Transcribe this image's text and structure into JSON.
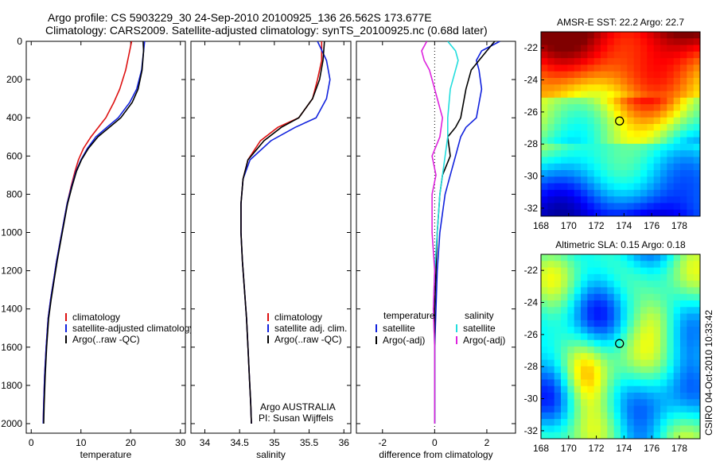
{
  "header": {
    "line1": "Argo profile: CS 5903229_30 24-Sep-2010 20100925_136 26.562S 173.677E",
    "line2": "Climatology: CARS2009. Satellite-adjusted climatology: synTS_20100925.nc (0.68d later)"
  },
  "side_text": "CSIRO 04-Oct-2010 10:33:42",
  "colors": {
    "clim": "#dd1111",
    "sat": "#1122dd",
    "argo": "#000000",
    "sal_sat": "#22dddd",
    "sal_argo": "#dd22dd"
  },
  "chart_data": [
    {
      "type": "line",
      "panel": "temperature",
      "xlabel": "temperature",
      "xlim": [
        -1,
        31
      ],
      "ylim": [
        2050,
        0
      ],
      "xticks": [
        "0",
        "10",
        "20",
        "30"
      ],
      "yticks": [
        "0",
        "200",
        "400",
        "600",
        "800",
        "1000",
        "1200",
        "1400",
        "1600",
        "1800",
        "2000"
      ],
      "legend": [
        "climatology",
        "satellite-adjusted climatology",
        "Argo(..raw -QC)"
      ],
      "series": [
        {
          "name": "climatology",
          "color": "#dd1111",
          "x": [
            20.2,
            19.8,
            19.0,
            17.8,
            16.6,
            15.0,
            13.5,
            12.0,
            10.5,
            9.5,
            8.8,
            8.0,
            7.2,
            6.5,
            5.8,
            5.1,
            4.5,
            3.9,
            3.4,
            3.0,
            2.7,
            2.5,
            2.4
          ],
          "y": [
            0,
            50,
            150,
            250,
            320,
            400,
            450,
            500,
            560,
            620,
            680,
            760,
            850,
            950,
            1050,
            1150,
            1250,
            1350,
            1450,
            1600,
            1750,
            1900,
            2000
          ]
        },
        {
          "name": "satellite-adjusted climatology",
          "color": "#1122dd",
          "x": [
            22.8,
            22.6,
            22.2,
            21.2,
            19.8,
            17.5,
            15.2,
            13.0,
            11.3,
            10.0,
            9.0,
            8.1,
            7.2,
            6.5,
            5.8,
            5.1,
            4.5,
            3.9,
            3.4,
            3.0,
            2.7,
            2.5,
            2.4
          ],
          "y": [
            0,
            50,
            150,
            250,
            320,
            400,
            450,
            500,
            560,
            620,
            680,
            760,
            850,
            950,
            1050,
            1150,
            1250,
            1350,
            1450,
            1600,
            1750,
            1900,
            2000
          ]
        },
        {
          "name": "Argo(..raw -QC)",
          "color": "#000000",
          "x": [
            22.5,
            22.6,
            22.3,
            21.5,
            20.3,
            18.0,
            15.7,
            13.4,
            11.5,
            10.1,
            9.1,
            8.2,
            7.3,
            6.6,
            5.9,
            5.2,
            4.6,
            4.0,
            3.5,
            3.1,
            2.8,
            2.6,
            2.5
          ],
          "y": [
            0,
            50,
            150,
            250,
            320,
            400,
            450,
            500,
            560,
            620,
            680,
            760,
            850,
            950,
            1050,
            1150,
            1250,
            1350,
            1450,
            1600,
            1750,
            1900,
            2000
          ]
        }
      ]
    },
    {
      "type": "line",
      "panel": "salinity",
      "xlabel": "salinity",
      "xlim": [
        33.8,
        36.1
      ],
      "ylim": [
        2050,
        0
      ],
      "xticks": [
        "34",
        "34.5",
        "35",
        "35.5",
        "36"
      ],
      "legend": [
        "climatology",
        "satellite adj. clim.",
        "Argo(..raw -QC)"
      ],
      "annotation": [
        "Argo AUSTRALIA",
        "PI: Susan Wijffels"
      ],
      "series": [
        {
          "name": "climatology",
          "color": "#dd1111",
          "x": [
            35.68,
            35.68,
            35.62,
            35.55,
            35.35,
            35.05,
            34.8,
            34.62,
            34.55,
            34.52,
            34.52,
            34.54,
            34.57,
            34.6,
            34.62,
            34.64,
            34.66,
            34.67
          ],
          "y": [
            0,
            100,
            200,
            300,
            400,
            450,
            520,
            620,
            720,
            850,
            1000,
            1150,
            1300,
            1450,
            1600,
            1750,
            1900,
            2000
          ]
        },
        {
          "name": "satellite adj. clim.",
          "color": "#1122dd",
          "x": [
            35.62,
            35.75,
            35.8,
            35.75,
            35.6,
            35.3,
            34.95,
            34.65,
            34.55,
            34.52,
            34.52,
            34.54,
            34.57,
            34.6,
            34.62,
            34.64,
            34.66,
            34.67
          ],
          "y": [
            0,
            100,
            200,
            300,
            400,
            450,
            520,
            620,
            720,
            850,
            1000,
            1150,
            1300,
            1450,
            1600,
            1750,
            1900,
            2000
          ]
        },
        {
          "name": "Argo(..raw -QC)",
          "color": "#000000",
          "x": [
            35.72,
            35.7,
            35.65,
            35.55,
            35.35,
            35.1,
            34.85,
            34.62,
            34.55,
            34.52,
            34.52,
            34.54,
            34.57,
            34.6,
            34.62,
            34.64,
            34.66,
            34.67
          ],
          "y": [
            0,
            100,
            200,
            300,
            400,
            450,
            520,
            620,
            720,
            850,
            1000,
            1150,
            1300,
            1450,
            1600,
            1750,
            1900,
            2000
          ]
        }
      ]
    },
    {
      "type": "line",
      "panel": "difference",
      "xlabel": "difference from climatology",
      "xlim": [
        -3,
        3.1
      ],
      "ylim": [
        2050,
        0
      ],
      "xticks": [
        "-2",
        "0",
        "2"
      ],
      "legend": {
        "temperature": [
          "satellite",
          "Argo(-adj)"
        ],
        "salinity": [
          "satellite",
          "Argo(-adj)"
        ]
      },
      "series": [
        {
          "name": "temperature satellite",
          "color": "#1122dd",
          "x": [
            2.5,
            1.8,
            1.6,
            1.7,
            1.8,
            1.6,
            1.2,
            1.0,
            0.8,
            0.6,
            0.4,
            0.3,
            0.2,
            0.1,
            0.05,
            0.0,
            0.0,
            0.0
          ],
          "y": [
            0,
            50,
            100,
            150,
            250,
            400,
            450,
            500,
            600,
            700,
            800,
            900,
            1000,
            1200,
            1400,
            1600,
            1800,
            2000
          ]
        },
        {
          "name": "temperature Argo(-adj)",
          "color": "#000000",
          "x": [
            2.3,
            2.0,
            1.7,
            1.4,
            1.2,
            1.0,
            0.8,
            0.5,
            0.6,
            0.3,
            0.2,
            0.15,
            0.1,
            0.05,
            0.0,
            0.0,
            0.0,
            0.0
          ],
          "y": [
            0,
            50,
            100,
            150,
            250,
            400,
            450,
            500,
            600,
            700,
            800,
            900,
            1000,
            1200,
            1400,
            1600,
            1800,
            2000
          ]
        },
        {
          "name": "salinity satellite",
          "color": "#22dddd",
          "x": [
            0.5,
            0.8,
            0.9,
            0.8,
            0.6,
            0.5,
            0.5,
            0.4,
            0.3,
            0.2,
            0.1,
            0.0,
            -0.05,
            0.0,
            0.0,
            0.0
          ],
          "y": [
            0,
            50,
            100,
            150,
            250,
            400,
            500,
            600,
            700,
            800,
            1000,
            1200,
            1400,
            1600,
            1800,
            2000
          ]
        },
        {
          "name": "salinity Argo(-adj)",
          "color": "#dd22dd",
          "x": [
            -0.3,
            -0.5,
            -0.4,
            -0.2,
            0.0,
            0.3,
            0.2,
            -0.1,
            0.05,
            -0.1,
            -0.1,
            0.0,
            -0.05,
            0.0,
            0.0,
            0.0
          ],
          "y": [
            0,
            50,
            100,
            150,
            250,
            400,
            500,
            600,
            700,
            800,
            1000,
            1200,
            1400,
            1600,
            1800,
            2000
          ]
        }
      ]
    },
    {
      "type": "heatmap",
      "panel": "amsre-sst",
      "title": "AMSR-E SST: 22.2 Argo: 22.7",
      "xlim": [
        168,
        179.5
      ],
      "ylim": [
        -32.5,
        -21
      ],
      "xticks": [
        "168",
        "170",
        "172",
        "174",
        "176",
        "178"
      ],
      "yticks": [
        "-22",
        "-24",
        "-26",
        "-28",
        "-30",
        "-32"
      ],
      "marker": {
        "lon": 173.677,
        "lat": -26.562
      }
    },
    {
      "type": "heatmap",
      "panel": "altimetric-sla",
      "title": "Altimetric SLA: 0.15 Argo: 0.18",
      "xlim": [
        168,
        179.5
      ],
      "ylim": [
        -32.5,
        -21
      ],
      "xticks": [
        "168",
        "170",
        "172",
        "174",
        "176",
        "178"
      ],
      "yticks": [
        "-22",
        "-24",
        "-26",
        "-28",
        "-30",
        "-32"
      ],
      "marker": {
        "lon": 173.677,
        "lat": -26.562
      }
    }
  ]
}
